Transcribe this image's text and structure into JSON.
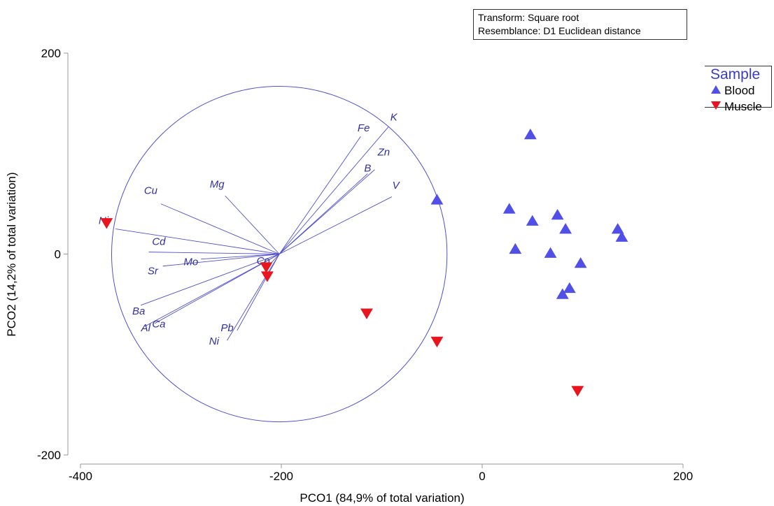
{
  "info": {
    "transform": "Transform: Square root",
    "resemblance": "Resemblance: D1 Euclidean distance"
  },
  "legend": {
    "title": "Sample",
    "items": [
      {
        "label": "Blood",
        "symbol": "triangle-up",
        "color": "#5050e8"
      },
      {
        "label": "Muscle",
        "symbol": "triangle-down",
        "color": "#e8141e"
      }
    ]
  },
  "chart_data": {
    "type": "scatter",
    "xlabel": "PCO1 (84,9% of total variation)",
    "ylabel": "PCO2 (14,2% of total variation)",
    "xlim": [
      -400,
      200
    ],
    "ylim": [
      -200,
      200
    ],
    "xticks": [
      -400,
      -200,
      0,
      200
    ],
    "yticks": [
      -200,
      0,
      200
    ],
    "grid": false,
    "legend_position": "top-right",
    "series": [
      {
        "name": "Blood",
        "marker": "triangle-up",
        "color": "#5050e8",
        "points": [
          [
            -45,
            54
          ],
          [
            48,
            119
          ],
          [
            27,
            45
          ],
          [
            50,
            33
          ],
          [
            75,
            39
          ],
          [
            83,
            25
          ],
          [
            135,
            25
          ],
          [
            139,
            17
          ],
          [
            33,
            5
          ],
          [
            68,
            1
          ],
          [
            98,
            -9
          ],
          [
            87,
            -34
          ],
          [
            80,
            -40
          ]
        ]
      },
      {
        "name": "Muscle",
        "marker": "triangle-down",
        "color": "#e8141e",
        "points": [
          [
            -374,
            31
          ],
          [
            -215,
            -13
          ],
          [
            -214,
            -22
          ],
          [
            -115,
            -59
          ],
          [
            -45,
            -87
          ],
          [
            95,
            -136
          ]
        ]
      }
    ],
    "correlation_circle": {
      "center": [
        -202,
        0
      ],
      "radius": 167,
      "color": "#5050d0"
    },
    "vectors": [
      {
        "label": "Fe",
        "end": [
          -121,
          117
        ]
      },
      {
        "label": "K",
        "end": [
          -93,
          127
        ]
      },
      {
        "label": "Zn",
        "end": [
          -107,
          84
        ]
      },
      {
        "label": "B",
        "end": [
          -114,
          80
        ]
      },
      {
        "label": "V",
        "end": [
          -90,
          57
        ]
      },
      {
        "label": "Mg",
        "end": [
          -256,
          58
        ]
      },
      {
        "label": "Cu",
        "end": [
          -320,
          50
        ]
      },
      {
        "label": "Ni",
        "end": [
          -365,
          25
        ]
      },
      {
        "label": "Cd",
        "end": [
          -332,
          2
        ]
      },
      {
        "label": "Mo",
        "end": [
          -280,
          -5
        ]
      },
      {
        "label": "Sr",
        "end": [
          -318,
          -12
        ]
      },
      {
        "label": "Co",
        "end": [
          -212,
          -11
        ]
      },
      {
        "label": "Ba",
        "end": [
          -340,
          -51
        ]
      },
      {
        "label": "Al",
        "end": [
          -336,
          -72
        ]
      },
      {
        "label": "Ca",
        "end": [
          -326,
          -69
        ]
      },
      {
        "label": "Pb",
        "end": [
          -244,
          -76
        ]
      },
      {
        "label": "Ni",
        "end": [
          -254,
          -86
        ]
      }
    ],
    "vector_labels": [
      {
        "text": "Fe",
        "at": [
          -118,
          122
        ]
      },
      {
        "text": "K",
        "at": [
          -88,
          133
        ]
      },
      {
        "text": "Zn",
        "at": [
          -98,
          98
        ]
      },
      {
        "text": "B",
        "at": [
          -114,
          82
        ]
      },
      {
        "text": "V",
        "at": [
          -86,
          65
        ]
      },
      {
        "text": "Mg",
        "at": [
          -264,
          66
        ]
      },
      {
        "text": "Cu",
        "at": [
          -330,
          60
        ]
      },
      {
        "text": "Ni",
        "at": [
          -377,
          30
        ]
      },
      {
        "text": "Cd",
        "at": [
          -322,
          9
        ]
      },
      {
        "text": "Mo",
        "at": [
          -290,
          -11
        ]
      },
      {
        "text": "Sr",
        "at": [
          -328,
          -20
        ]
      },
      {
        "text": "Co",
        "at": [
          -218,
          -10
        ]
      },
      {
        "text": "Ba",
        "at": [
          -342,
          -60
        ]
      },
      {
        "text": "Al",
        "at": [
          -335,
          -77
        ]
      },
      {
        "text": "Ca",
        "at": [
          -322,
          -73
        ]
      },
      {
        "text": "Pb",
        "at": [
          -254,
          -77
        ]
      },
      {
        "text": "Ni",
        "at": [
          -267,
          -90
        ]
      }
    ]
  }
}
